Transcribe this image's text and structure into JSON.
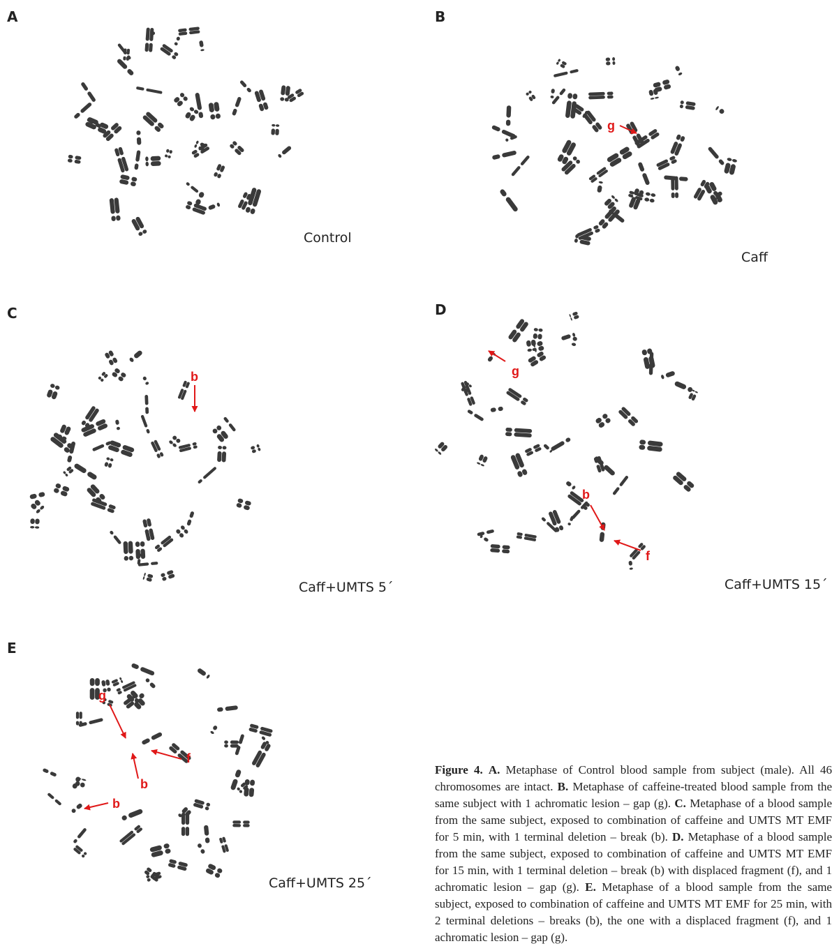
{
  "panels": [
    {
      "id": "A",
      "label": "A",
      "condition": "Control",
      "annotations": []
    },
    {
      "id": "B",
      "label": "B",
      "condition": "Caff",
      "annotations": [
        "g"
      ]
    },
    {
      "id": "C",
      "label": "C",
      "condition": "Caff+UMTS 5´",
      "annotations": [
        "b"
      ]
    },
    {
      "id": "D",
      "label": "D",
      "condition": "Caff+UMTS 15´",
      "annotations": [
        "g",
        "b",
        "f"
      ]
    },
    {
      "id": "E",
      "label": "E",
      "condition": "Caff+UMTS 25´",
      "annotations": [
        "g",
        "f",
        "b",
        "b"
      ]
    }
  ],
  "caption": {
    "figure_label": "Figure 4.",
    "parts": [
      {
        "label": "A.",
        "text": " Metaphase of Control blood sample from subject (male). All 46 chromosomes are intact. "
      },
      {
        "label": "B.",
        "text": " Metaphase of caffeine-treated blood sample from the same subject with 1 achromatic lesion – gap (g). "
      },
      {
        "label": "C.",
        "text": " Metaphase of a blood sample from the same subject, exposed to combination of caffeine and UMTS MT EMF for 5 min, with 1 terminal deletion – break (b). "
      },
      {
        "label": "D.",
        "text": " Metaphase of a blood sample from the same subject, exposed to combination of caffeine and UMTS MT EMF for 15 min, with 1 terminal deletion – break (b) with displaced fragment (f), and 1 achromatic lesion – gap (g). "
      },
      {
        "label": "E.",
        "text": " Metaphase of a blood sample from the same subject, exposed to combination of caffeine and UMTS MT EMF for 25 min, with 2 terminal deletions – breaks (b), the one with a displaced fragment (f), and 1 achromatic lesion – gap (g)."
      }
    ]
  },
  "colors": {
    "annotation": "#e01818",
    "chromosome": "#3a3a3a"
  }
}
